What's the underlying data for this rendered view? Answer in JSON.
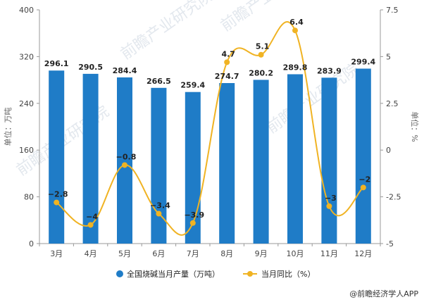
{
  "chart_data": {
    "type": "bar+line",
    "categories": [
      "3月",
      "4月",
      "5月",
      "6月",
      "7月",
      "8月",
      "9月",
      "10月",
      "11月",
      "12月"
    ],
    "series": [
      {
        "name": "全国烧碱当月产量（万吨）",
        "type": "bar",
        "axis": "left",
        "color": "#1f7cc7",
        "values": [
          296.1,
          290.5,
          284.4,
          266.5,
          259.4,
          274.7,
          280.2,
          289.8,
          283.9,
          299.4
        ],
        "labels": [
          "296.1",
          "290.5",
          "284.4",
          "266.5",
          "259.4",
          "274.7",
          "280.2",
          "289.8",
          "283.9",
          "299.4"
        ]
      },
      {
        "name": "当月同比（%）",
        "type": "line",
        "axis": "right",
        "color": "#f0b323",
        "values": [
          -2.8,
          -4,
          -0.8,
          -3.4,
          -3.9,
          4.7,
          5.1,
          6.4,
          -3,
          -2
        ],
        "labels": [
          "−2.8",
          "−4",
          "−0.8",
          "−3.4",
          "−3.9",
          "4.7",
          "5.1",
          "6.4",
          "−3",
          "−2"
        ]
      }
    ],
    "y_left": {
      "label": "单位：万吨",
      "range": [
        0,
        400
      ],
      "ticks": [
        0,
        80,
        160,
        240,
        320,
        400
      ],
      "tick_labels": [
        "0",
        "80",
        "160",
        "240",
        "320",
        "400"
      ]
    },
    "y_right": {
      "label": "单位：%",
      "range": [
        -5,
        7.5
      ],
      "ticks": [
        -5,
        -2.5,
        0,
        2.5,
        5,
        7.5
      ],
      "tick_labels": [
        "-5",
        "-2.5",
        "0",
        "2.5",
        "5",
        "7.5"
      ]
    },
    "grid": false,
    "legend_position": "bottom"
  },
  "credit": "@前瞻经济学人APP",
  "watermark": "前瞻产业研究院"
}
